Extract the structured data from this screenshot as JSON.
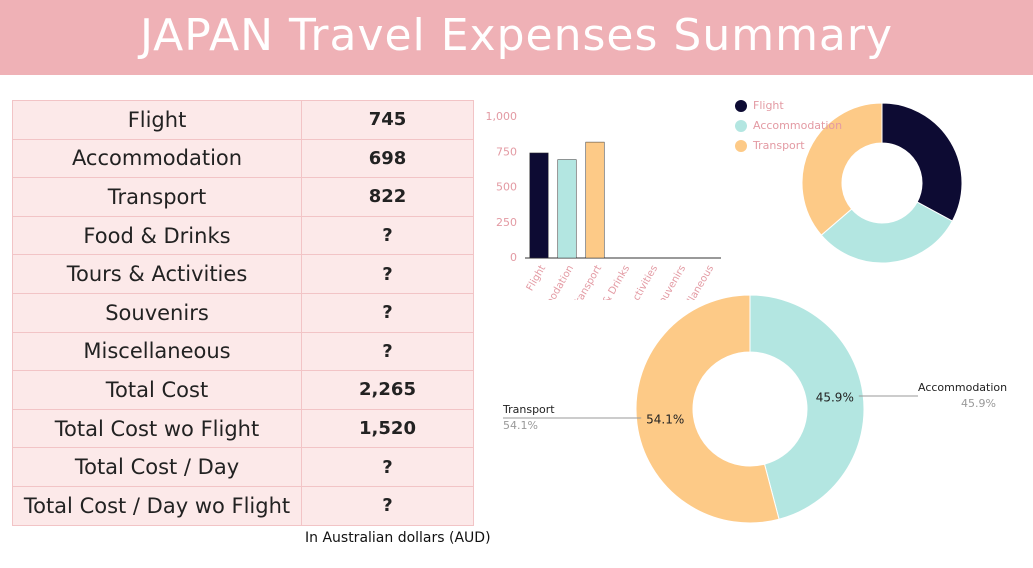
{
  "header": {
    "title": "JAPAN Travel Expenses Summary"
  },
  "table": {
    "rows": [
      [
        "Flight",
        "745"
      ],
      [
        "Accommodation",
        "698"
      ],
      [
        "Transport",
        "822"
      ],
      [
        "Food & Drinks",
        "?"
      ],
      [
        "Tours & Activities",
        "?"
      ],
      [
        "Souvenirs",
        "?"
      ],
      [
        "Miscellaneous",
        "?"
      ],
      [
        "Total Cost",
        "2,265"
      ],
      [
        "Total Cost wo Flight",
        "1,520"
      ],
      [
        "Total Cost / Day",
        "?"
      ],
      [
        "Total Cost / Day wo Flight",
        "?"
      ]
    ]
  },
  "chart_data": [
    {
      "type": "bar",
      "categories": [
        "Flight",
        "Accommodation",
        "Transport",
        "Food & Drinks",
        "Tours & Activities",
        "Souvenirs",
        "Miscellaneous"
      ],
      "values": [
        745,
        698,
        822,
        null,
        null,
        null,
        null
      ],
      "colors": [
        "#0d0b33",
        "#b3e6e1",
        "#fdca87",
        null,
        null,
        null,
        null
      ],
      "ylim": [
        0,
        1000
      ],
      "yticks": [
        0,
        250,
        500,
        750,
        {
          "value": 1000,
          "label": "1,000"
        }
      ],
      "grid": false
    },
    {
      "type": "pie",
      "categories": [
        "Flight",
        "Accommodation",
        "Transport"
      ],
      "values": [
        745,
        698,
        822
      ],
      "colors": [
        "#0d0b33",
        "#b3e6e1",
        "#fdca87"
      ],
      "legend": "left"
    },
    {
      "type": "pie",
      "categories": [
        "Accommodation",
        "Transport"
      ],
      "values": [
        45.9,
        54.1
      ],
      "value_labels": [
        "45.9%",
        "54.1%"
      ],
      "colors": [
        "#b3e6e1",
        "#fdca87"
      ]
    }
  ],
  "footnote": "In Australian dollars (AUD)"
}
